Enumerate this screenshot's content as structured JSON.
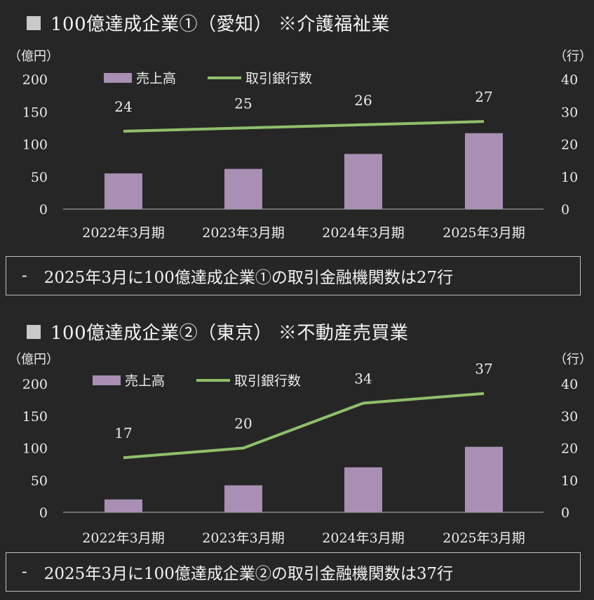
{
  "colors": {
    "bar": "#a98fb4",
    "line": "#8fbf6b",
    "background": "#262626",
    "axis": "#9a9a9a"
  },
  "panels": [
    {
      "title": "100億達成企業①（愛知） ※介護福祉業",
      "note_dash": "-",
      "note": "2025年3月に100億達成企業①の取引金融機関数は27行",
      "chart_data": {
        "type": "bar+line",
        "categories": [
          "2022年3月期",
          "2023年3月期",
          "2024年3月期",
          "2025年3月期"
        ],
        "series": [
          {
            "name": "売上高",
            "type": "bar",
            "axis": "left",
            "values": [
              55,
              62,
              85,
              117
            ]
          },
          {
            "name": "取引銀行数",
            "type": "line",
            "axis": "right",
            "values": [
              24,
              25,
              26,
              27
            ]
          }
        ],
        "left_axis": {
          "label": "（億円）",
          "min": 0,
          "max": 200,
          "ticks": [
            0,
            50,
            100,
            150,
            200
          ]
        },
        "right_axis": {
          "label": "（行）",
          "min": 0,
          "max": 40,
          "ticks": [
            0,
            10,
            20,
            30,
            40
          ]
        },
        "legend": [
          "売上高",
          "取引銀行数"
        ],
        "legend_position": "top-left",
        "data_labels": [
          "24",
          "25",
          "26",
          "27"
        ]
      }
    },
    {
      "title": "100億達成企業②（東京） ※不動産売買業",
      "note_dash": "-",
      "note": "2025年3月に100億達成企業②の取引金融機関数は37行",
      "chart_data": {
        "type": "bar+line",
        "categories": [
          "2022年3月期",
          "2023年3月期",
          "2024年3月期",
          "2025年3月期"
        ],
        "series": [
          {
            "name": "売上高",
            "type": "bar",
            "axis": "left",
            "values": [
              20,
              42,
              70,
              102
            ]
          },
          {
            "name": "取引銀行数",
            "type": "line",
            "axis": "right",
            "values": [
              17,
              20,
              34,
              37
            ]
          }
        ],
        "left_axis": {
          "label": "（億円）",
          "min": 0,
          "max": 200,
          "ticks": [
            0,
            50,
            100,
            150,
            200
          ]
        },
        "right_axis": {
          "label": "（行）",
          "min": 0,
          "max": 40,
          "ticks": [
            0,
            10,
            20,
            30,
            40
          ]
        },
        "legend": [
          "売上高",
          "取引銀行数"
        ],
        "legend_position": "top-left",
        "data_labels": [
          "17",
          "20",
          "34",
          "37"
        ]
      }
    }
  ]
}
